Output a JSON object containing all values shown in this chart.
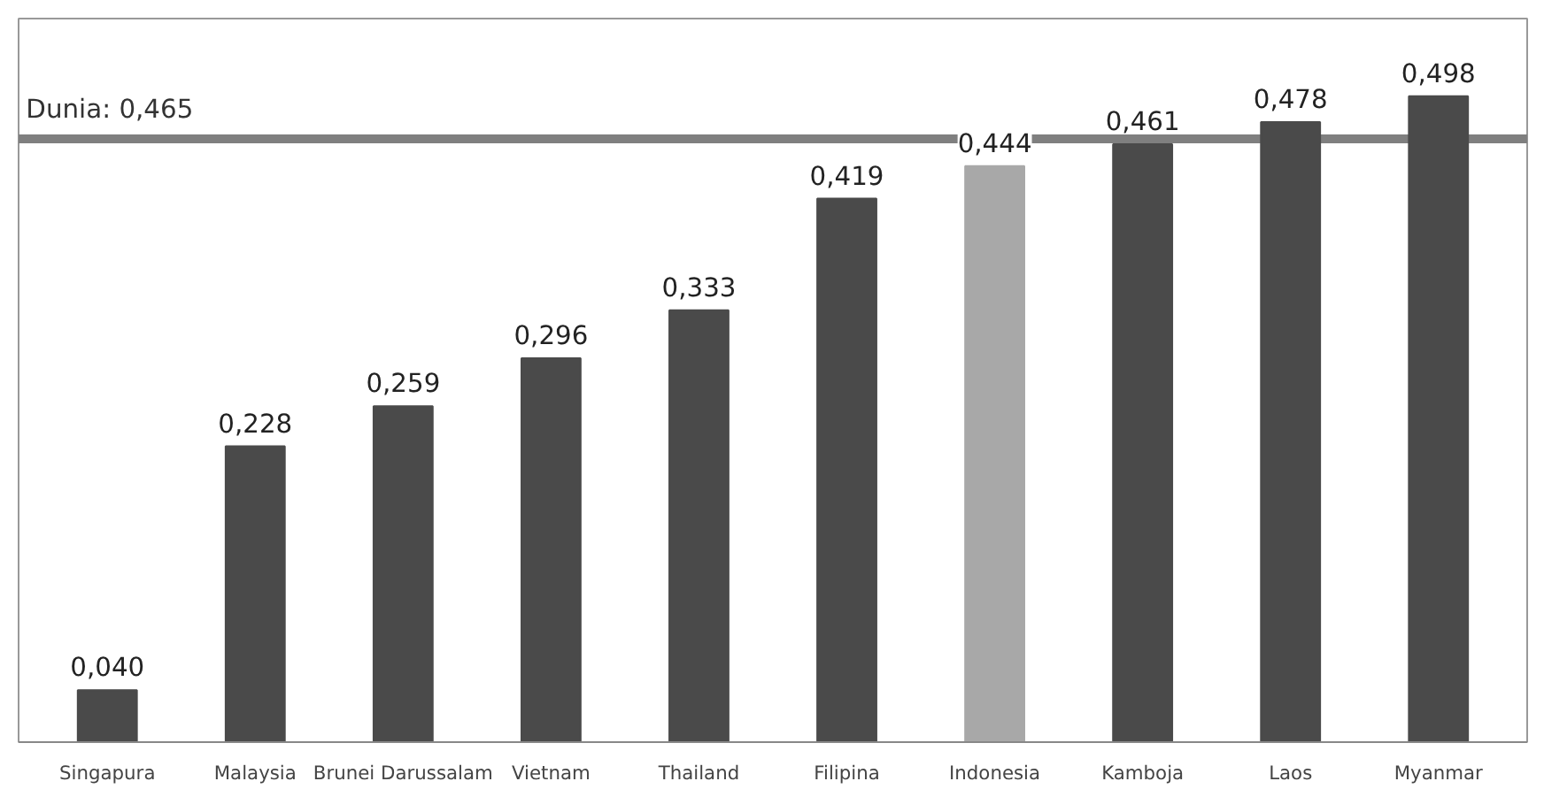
{
  "chart_data": {
    "type": "bar",
    "categories": [
      "Singapura",
      "Malaysia",
      "Brunei Darussalam",
      "Vietnam",
      "Thailand",
      "Filipina",
      "Indonesia",
      "Kamboja",
      "Laos",
      "Myanmar"
    ],
    "values": [
      0.04,
      0.228,
      0.259,
      0.296,
      0.333,
      0.419,
      0.444,
      0.461,
      0.478,
      0.498
    ],
    "colors": [
      "#4a4a4a",
      "#4a4a4a",
      "#4a4a4a",
      "#4a4a4a",
      "#4a4a4a",
      "#4a4a4a",
      "#a8a8a8",
      "#4a4a4a",
      "#4a4a4a",
      "#4a4a4a"
    ],
    "value_labels": [
      "0,040",
      "0,228",
      "0,259",
      "0,296",
      "0,333",
      "0,419",
      "0,444",
      "0,461",
      "0,478",
      "0,498"
    ],
    "ref_lines": [
      {
        "axis": "y",
        "value": 0.465,
        "label": "Dunia: 0,465",
        "color": "#7f7f7f"
      }
    ],
    "grid": false
  }
}
